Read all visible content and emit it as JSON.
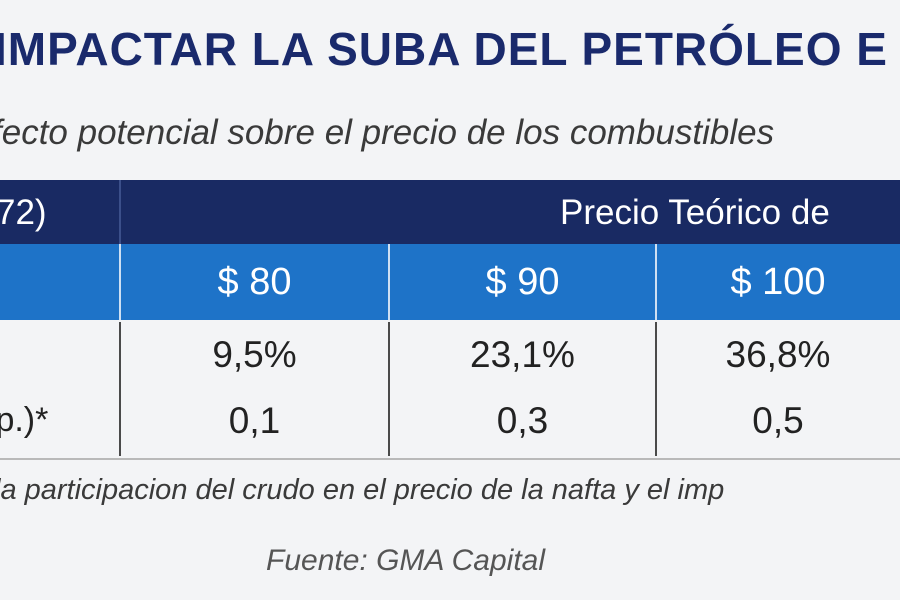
{
  "title": "IMPACTAR LA SUBA DEL PETRÓLEO E",
  "subtitle": "fecto potencial sobre el precio de los combustibles",
  "table": {
    "header_left": "72)",
    "header_main": "Precio Teórico de",
    "prices": [
      "$ 80",
      "$ 90",
      "$ 100"
    ],
    "rows": [
      {
        "label": "",
        "values": [
          "9,5%",
          "23,1%",
          "36,8%"
        ]
      },
      {
        "label": ".p.)*",
        "values": [
          "0,1",
          "0,3",
          "0,5"
        ]
      }
    ]
  },
  "note": "la participacion del crudo en el precio de la nafta y el imp",
  "source": "Fuente: GMA Capital",
  "colors": {
    "title": "#1a2a6c",
    "header_dark": "#192a63",
    "header_blue": "#1e73c8",
    "background": "#f3f4f6"
  }
}
